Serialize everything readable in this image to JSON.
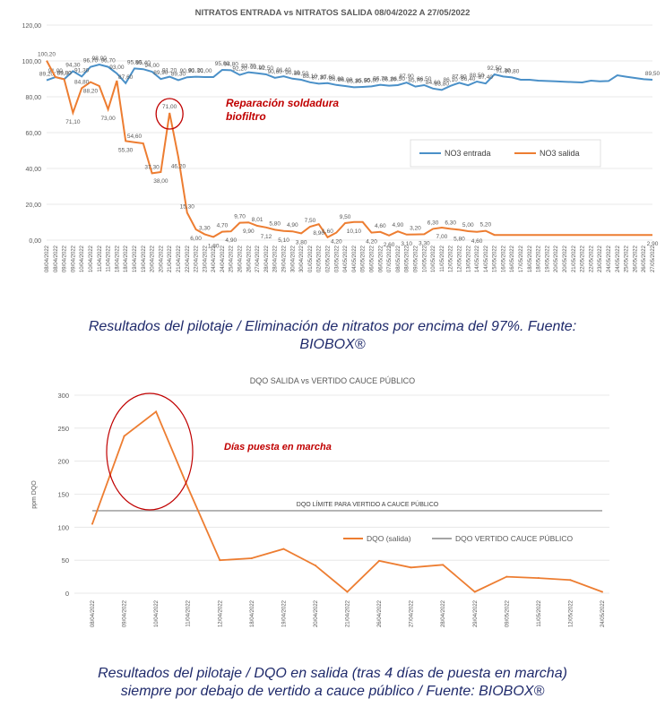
{
  "chart_data": [
    {
      "type": "line",
      "title": "NITRATOS ENTRADA vs NITRATOS SALIDA 08/04/2022 A 27/05/2022",
      "ylim": [
        0,
        120
      ],
      "yticks": [
        "0,00",
        "20,00",
        "40,00",
        "60,00",
        "80,00",
        "100,00",
        "120,00"
      ],
      "grid": true,
      "legend_position": "right",
      "categories": [
        "08/04/2022",
        "08/04/2022",
        "09/04/2022",
        "09/04/2022",
        "10/04/2022",
        "10/04/2022",
        "11/04/2022",
        "11/04/2022",
        "18/04/2022",
        "18/04/2022",
        "19/04/2022",
        "19/04/2022",
        "20/04/2022",
        "20/04/2022",
        "21/04/2022",
        "21/04/2022",
        "22/04/2022",
        "22/04/2022",
        "23/04/2022",
        "24/04/2022",
        "24/04/2022",
        "25/04/2022",
        "26/04/2022",
        "26/04/2022",
        "27/04/2022",
        "28/04/2022",
        "28/04/2022",
        "29/04/2022",
        "30/04/2022",
        "30/04/2022",
        "01/05/2022",
        "02/05/2022",
        "02/05/2022",
        "03/05/2022",
        "04/05/2022",
        "04/05/2022",
        "05/05/2022",
        "06/05/2022",
        "06/05/2022",
        "07/05/2022",
        "08/05/2022",
        "08/05/2022",
        "09/05/2022",
        "10/05/2022",
        "10/05/2022",
        "11/05/2022",
        "12/05/2022",
        "12/05/2022",
        "13/05/2022",
        "14/05/2022",
        "14/05/2022",
        "15/05/2022",
        "16/05/2022",
        "16/05/2022",
        "17/05/2022",
        "18/05/2022",
        "18/05/2022",
        "19/05/2022",
        "20/05/2022",
        "20/05/2022",
        "21/05/2022",
        "22/05/2022",
        "22/05/2022",
        "23/05/2022",
        "24/05/2022",
        "24/05/2022",
        "25/05/2022",
        "26/05/2022",
        "26/05/2022",
        "27/05/2022"
      ],
      "series": [
        {
          "name": "NO3 entrada",
          "color": "#4a90c8",
          "values": [
            89.2,
            91.0,
            89.8,
            94.3,
            91.3,
            96.7,
            98.0,
            96.7,
            93.0,
            87.6,
            95.8,
            95.4,
            94.0,
            89.9,
            91.2,
            89.3,
            90.9,
            91.2,
            91.0,
            91.0,
            95.0,
            94.8,
            92.2,
            93.7,
            93.1,
            92.5,
            90.6,
            91.4,
            90.1,
            89.5,
            88.1,
            87.3,
            87.6,
            86.6,
            86.0,
            85.3,
            85.5,
            85.8,
            86.7,
            86.2,
            86.5,
            87.9,
            85.7,
            86.5,
            84.6,
            83.8,
            86.1,
            87.8,
            86.4,
            88.5,
            87.4,
            92.5,
            91.3,
            90.8,
            89.5,
            89.5,
            89.0,
            88.8,
            88.6,
            88.4,
            88.2,
            88.0,
            89.0,
            88.6,
            88.8,
            92.0,
            91.2,
            90.5,
            89.8,
            89.5
          ],
          "labels": [
            "89,20",
            "91,00",
            "89,80",
            "94,30",
            "91,30",
            "96,70",
            "98,00",
            "96,70",
            "93,00",
            "87,60",
            "95,80",
            "95,40",
            "94,00",
            "89,90",
            "91,20",
            "89,30",
            "90,90",
            "91,20",
            "91,00",
            "",
            "95,00",
            "94,80",
            "92,20",
            "93,70",
            "93,10",
            "92,50",
            "90,60",
            "91,40",
            "90,10",
            "89,50",
            "88,10",
            "87,30",
            "87,60",
            "86,60",
            "86,00",
            "85,30",
            "85,50",
            "85,80",
            "86,70",
            "86,20",
            "86,50",
            "87,90",
            "85,70",
            "86,50",
            "84,60",
            "83,80",
            "86,10",
            "87,80",
            "86,40",
            "88,50",
            "87,40",
            "92,50",
            "91,30",
            "90,80",
            "",
            "",
            "",
            "",
            "",
            "",
            "",
            "",
            "",
            "",
            "",
            "",
            "",
            "",
            "",
            "89,50"
          ]
        },
        {
          "name": "NO3 salida",
          "color": "#ed7d31",
          "values": [
            100.2,
            91.0,
            89.8,
            71.1,
            84.8,
            88.2,
            86.0,
            73.0,
            89.0,
            55.3,
            54.6,
            54.0,
            37.3,
            38.0,
            71.0,
            46.2,
            15.3,
            6.0,
            3.3,
            1.8,
            4.7,
            4.9,
            9.7,
            9.9,
            8.01,
            7.12,
            5.8,
            5.1,
            4.9,
            3.8,
            7.5,
            8.9,
            1.6,
            4.2,
            9.5,
            10.1,
            10.1,
            4.2,
            4.6,
            2.6,
            4.9,
            3.1,
            3.2,
            3.3,
            6.3,
            7.0,
            6.3,
            5.8,
            5.0,
            4.6,
            5.2,
            2.9,
            2.9,
            2.9,
            2.9,
            2.9,
            2.9,
            2.9,
            2.9,
            2.9,
            2.9,
            2.9,
            2.9,
            2.9,
            2.9,
            2.9,
            2.9,
            2.9,
            2.9,
            2.9
          ],
          "labels": [
            "100,20",
            "",
            "89,80",
            "71,10",
            "84,80",
            "88,20",
            "",
            "73,00",
            "",
            "55,30",
            "54,60",
            "",
            "37,30",
            "38,00",
            "71,00",
            "46,20",
            "15,30",
            "6,00",
            "3,30",
            "1,80",
            "4,70",
            "4,90",
            "9,70",
            "9,90",
            "8,01",
            "7,12",
            "5,80",
            "5,10",
            "4,90",
            "3,80",
            "7,50",
            "8,90",
            "1,60",
            "4,20",
            "9,50",
            "10,10",
            "",
            "4,20",
            "4,60",
            "2,60",
            "4,90",
            "3,10",
            "3,20",
            "3,30",
            "6,30",
            "7,00",
            "6,30",
            "5,80",
            "5,00",
            "4,60",
            "5,20",
            "",
            "",
            "",
            "",
            "",
            "",
            "",
            "",
            "",
            "",
            "",
            "",
            "",
            "",
            "",
            "",
            "",
            "",
            "2,90"
          ]
        }
      ],
      "annotation": {
        "text1": "Reparación soldadura",
        "text2": "biofiltro",
        "color": "#c00000"
      }
    },
    {
      "type": "line",
      "title": "DQO SALIDA vs VERTIDO CAUCE PÚBLICO",
      "ylabel": "ppm DQO",
      "ylim": [
        0,
        300
      ],
      "yticks": [
        "0",
        "50",
        "100",
        "150",
        "200",
        "250",
        "300"
      ],
      "grid": true,
      "legend_position": "right",
      "categories": [
        "08/04/2022",
        "09/04/2022",
        "10/04/2022",
        "11/04/2022",
        "12/04/2022",
        "18/04/2022",
        "19/04/2022",
        "20/04/2022",
        "21/04/2022",
        "26/04/2022",
        "27/04/2022",
        "28/04/2022",
        "29/04/2022",
        "09/05/2022",
        "11/05/2022",
        "12/05/2022",
        "24/05/2022"
      ],
      "series": [
        {
          "name": "DQO (salida)",
          "color": "#ed7d31",
          "values": [
            105,
            238,
            275,
            160,
            50,
            53,
            67,
            42,
            2,
            49,
            39,
            43,
            2,
            25,
            23,
            20,
            2
          ]
        },
        {
          "name": "DQO VERTIDO CAUCE PÚBLICO",
          "color": "#a5a5a5",
          "values": [
            125,
            125,
            125,
            125,
            125,
            125,
            125,
            125,
            125,
            125,
            125,
            125,
            125,
            125,
            125,
            125,
            125
          ]
        }
      ],
      "limit_label": "DQO LÍMITE PARA VERTIDO A CAUCE PÚBLICO",
      "annotation": {
        "text": "Días puesta en marcha",
        "color": "#c00000"
      }
    }
  ],
  "captions": {
    "first_line1": "Resultados del pilotaje / Eliminación de nitratos por encima del 97%. Fuente:",
    "first_line2": "BIOBOX®",
    "second_line1": "Resultados del pilotaje /  DQO en salida (tras 4 días de puesta en marcha)",
    "second_line2": "siempre por debajo de vertido a cauce público / Fuente: BIOBOX®"
  }
}
